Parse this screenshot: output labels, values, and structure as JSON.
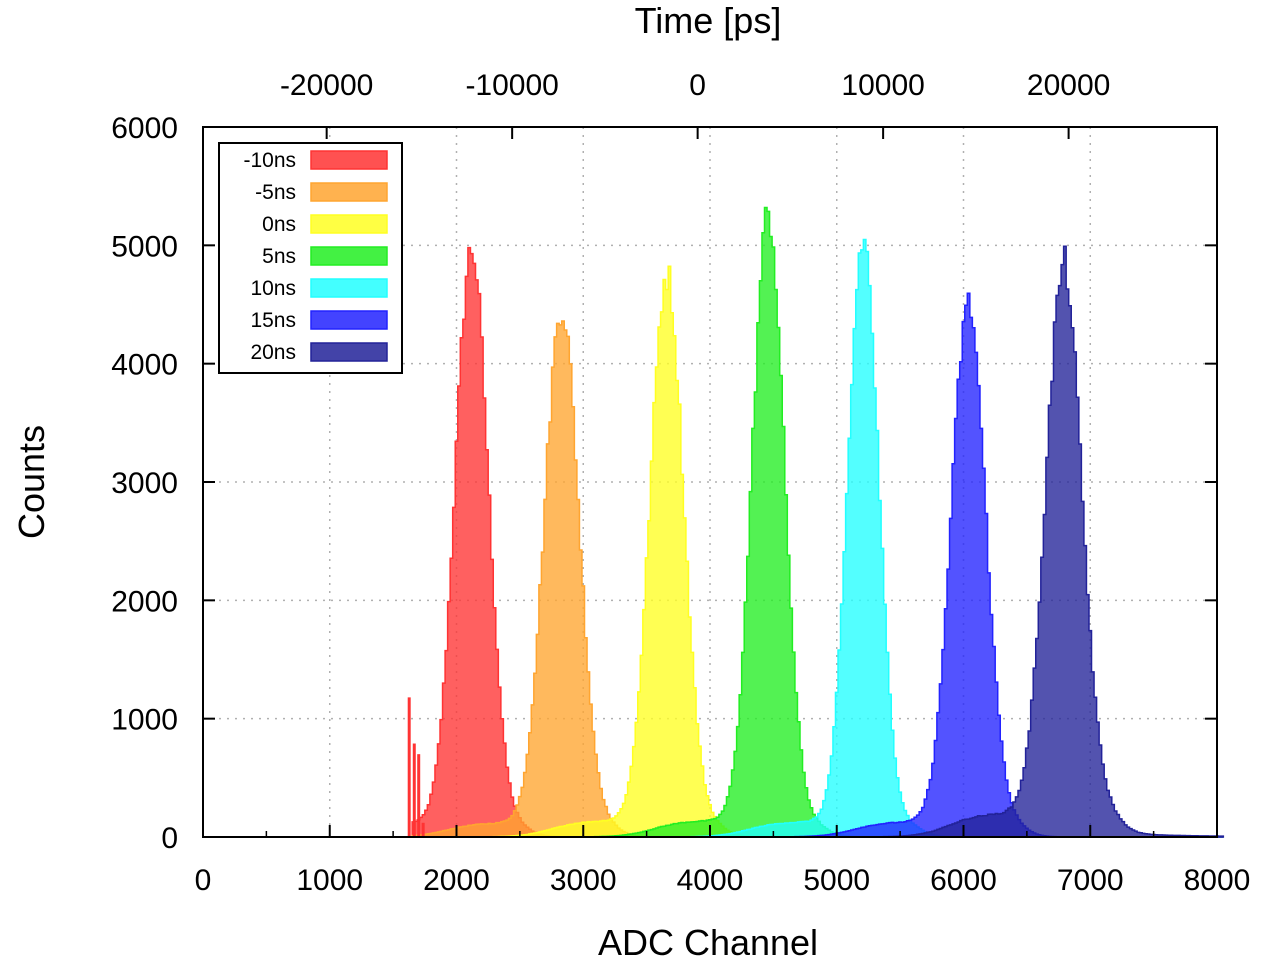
{
  "chart_data": {
    "type": "bar",
    "xlabel": "ADC Channel",
    "ylabel": "Counts",
    "x2label": "Time [ps]",
    "xlim": [
      0,
      8000
    ],
    "ylim": [
      0,
      6000
    ],
    "x2lim": [
      -26667,
      28000
    ],
    "xticks": [
      0,
      1000,
      2000,
      3000,
      4000,
      5000,
      6000,
      7000,
      8000
    ],
    "yticks": [
      0,
      1000,
      2000,
      3000,
      4000,
      5000,
      6000
    ],
    "x2ticks": [
      -20000,
      -10000,
      0,
      10000,
      20000
    ],
    "grid": true,
    "legend_position": "top-left",
    "series": [
      {
        "name": "-10ns",
        "color": "#ff3333",
        "peak_channel": 2120,
        "peak_counts": 4850,
        "sigma": 130,
        "tail_counts": 120
      },
      {
        "name": "-5ns",
        "color": "#ffa530",
        "peak_channel": 2830,
        "peak_counts": 4350,
        "sigma": 135,
        "tail_counts": 120
      },
      {
        "name": "0ns",
        "color": "#ffff22",
        "peak_channel": 3660,
        "peak_counts": 4620,
        "sigma": 130,
        "tail_counts": 140
      },
      {
        "name": "5ns",
        "color": "#22ee22",
        "peak_channel": 4460,
        "peak_counts": 5130,
        "sigma": 125,
        "tail_counts": 140
      },
      {
        "name": "10ns",
        "color": "#22ffff",
        "peak_channel": 5210,
        "peak_counts": 4920,
        "sigma": 120,
        "tail_counts": 130
      },
      {
        "name": "15ns",
        "color": "#2222ff",
        "peak_channel": 6040,
        "peak_counts": 4370,
        "sigma": 135,
        "tail_counts": 130
      },
      {
        "name": "20ns",
        "color": "#222299",
        "peak_channel": 6790,
        "peak_counts": 4600,
        "sigma": 140,
        "tail_counts": 200
      }
    ]
  }
}
